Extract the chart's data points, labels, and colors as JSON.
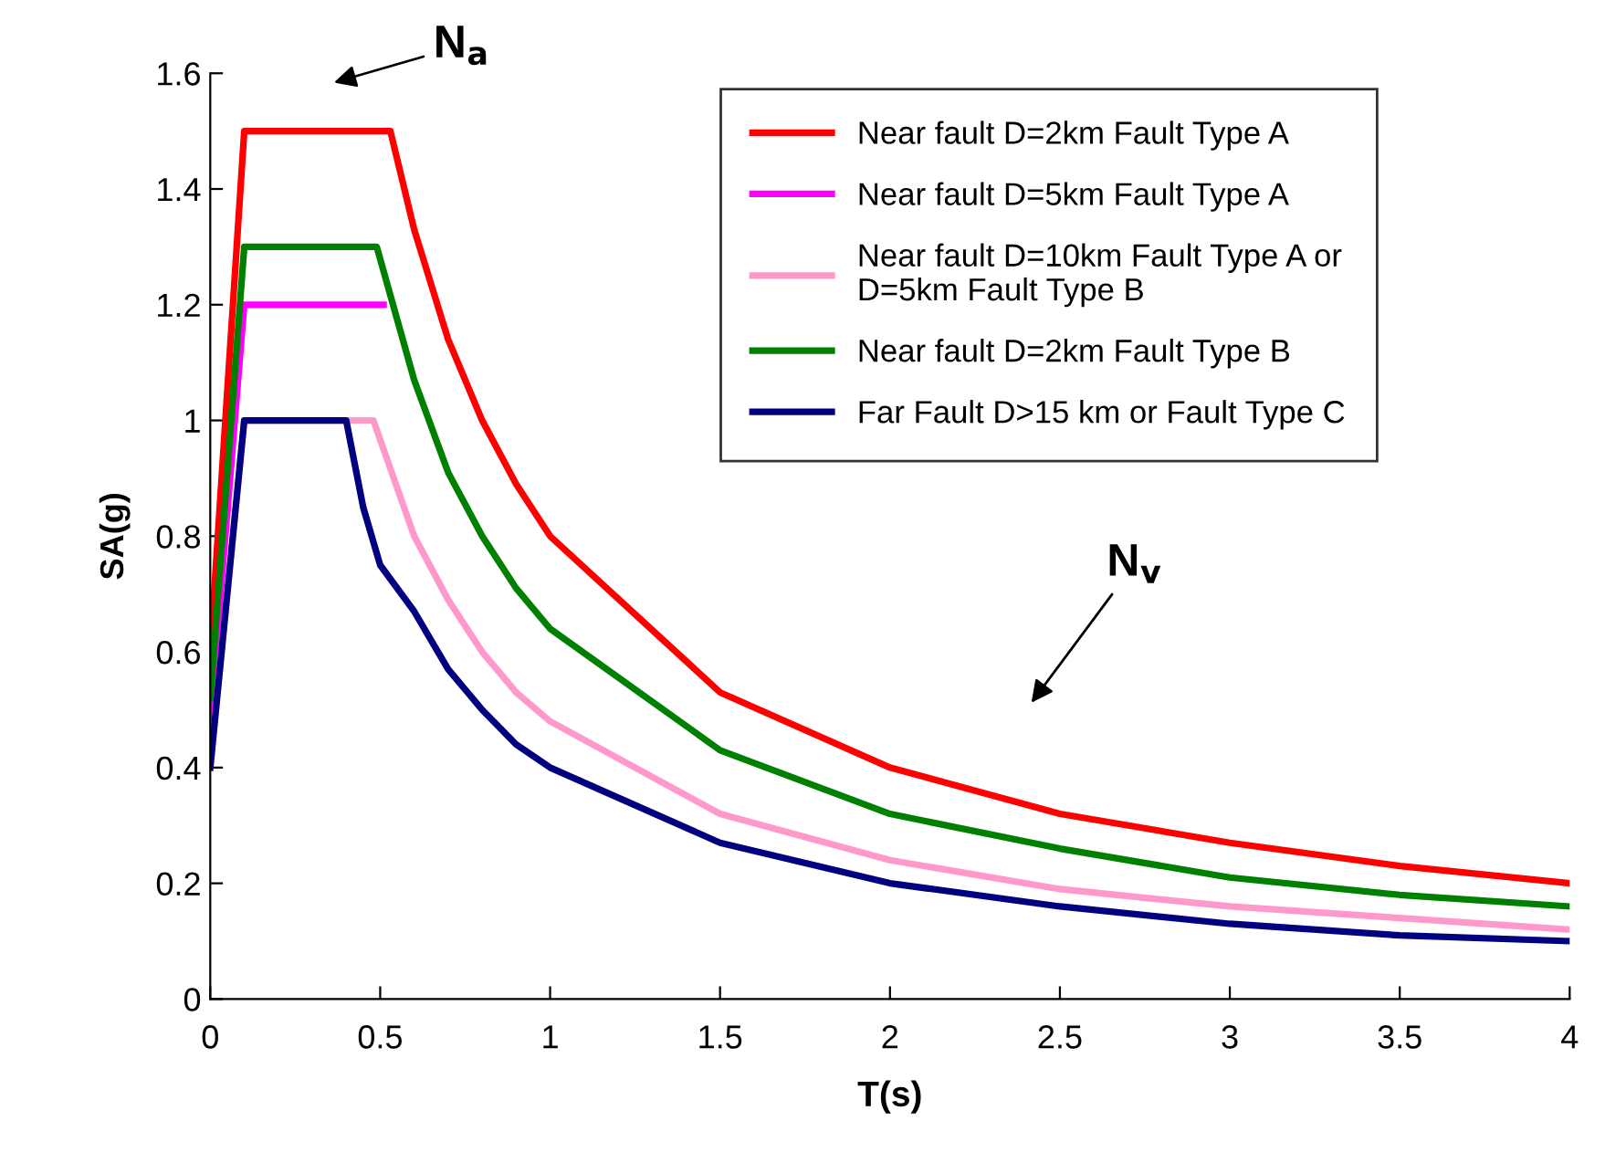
{
  "chart_data": {
    "type": "line",
    "xlabel": "T(s)",
    "ylabel": "SA(g)",
    "xlim": [
      0,
      4
    ],
    "xticks": [
      0,
      0.5,
      1,
      1.5,
      2,
      2.5,
      3,
      3.5,
      4
    ],
    "ylim": [
      0,
      1.6
    ],
    "yticks": [
      0,
      0.2,
      0.4,
      0.6,
      0.8,
      1,
      1.2,
      1.4,
      1.6
    ],
    "grid": false,
    "legend": "top right",
    "marker": "none",
    "line_style": "solid",
    "series": [
      {
        "name": "Near fault D=2km Fault Type A",
        "color": "#ff0000",
        "x": [
          0,
          0.1,
          0.53,
          0.6,
          0.7,
          0.8,
          0.9,
          1,
          1.5,
          2,
          2.5,
          3,
          3.5,
          4
        ],
        "values": [
          0.6,
          1.5,
          1.5,
          1.33,
          1.14,
          1.0,
          0.89,
          0.8,
          0.53,
          0.4,
          0.32,
          0.27,
          0.23,
          0.2
        ]
      },
      {
        "name": "Near fault D=5km Fault Type A",
        "color": "#ff00ff",
        "x": [
          0,
          0.1,
          0.51
        ],
        "values": [
          0.48,
          1.2,
          1.2
        ]
      },
      {
        "name": "Near fault D=10km Fault Type A or D=5km Fault Type B",
        "color": "#ff99cc",
        "x": [
          0,
          0.1,
          0.48,
          0.6,
          0.7,
          0.8,
          0.9,
          1,
          1.5,
          2,
          2.5,
          3,
          3.5,
          4
        ],
        "values": [
          0.4,
          1.0,
          1.0,
          0.8,
          0.69,
          0.6,
          0.53,
          0.48,
          0.32,
          0.24,
          0.19,
          0.16,
          0.14,
          0.12
        ]
      },
      {
        "name": "Near fault D=2km Fault Type B",
        "color": "#008000",
        "x": [
          0,
          0.1,
          0.49,
          0.6,
          0.7,
          0.8,
          0.9,
          1,
          1.5,
          2,
          2.5,
          3,
          3.5,
          4
        ],
        "values": [
          0.52,
          1.3,
          1.3,
          1.07,
          0.91,
          0.8,
          0.71,
          0.64,
          0.43,
          0.32,
          0.26,
          0.21,
          0.18,
          0.16
        ]
      },
      {
        "name": "Far Fault D>15 km or Fault Type C",
        "color": "#000080",
        "x": [
          0,
          0.1,
          0.4,
          0.45,
          0.5,
          0.6,
          0.7,
          0.8,
          0.9,
          1,
          1.5,
          2,
          2.5,
          3,
          3.5,
          4
        ],
        "values": [
          0.4,
          1.0,
          1.0,
          0.85,
          0.75,
          0.67,
          0.57,
          0.5,
          0.44,
          0.4,
          0.27,
          0.2,
          0.16,
          0.13,
          0.11,
          0.1
        ]
      }
    ],
    "annotations": [
      "N$_{a}$",
      "N$_{v}$"
    ]
  }
}
